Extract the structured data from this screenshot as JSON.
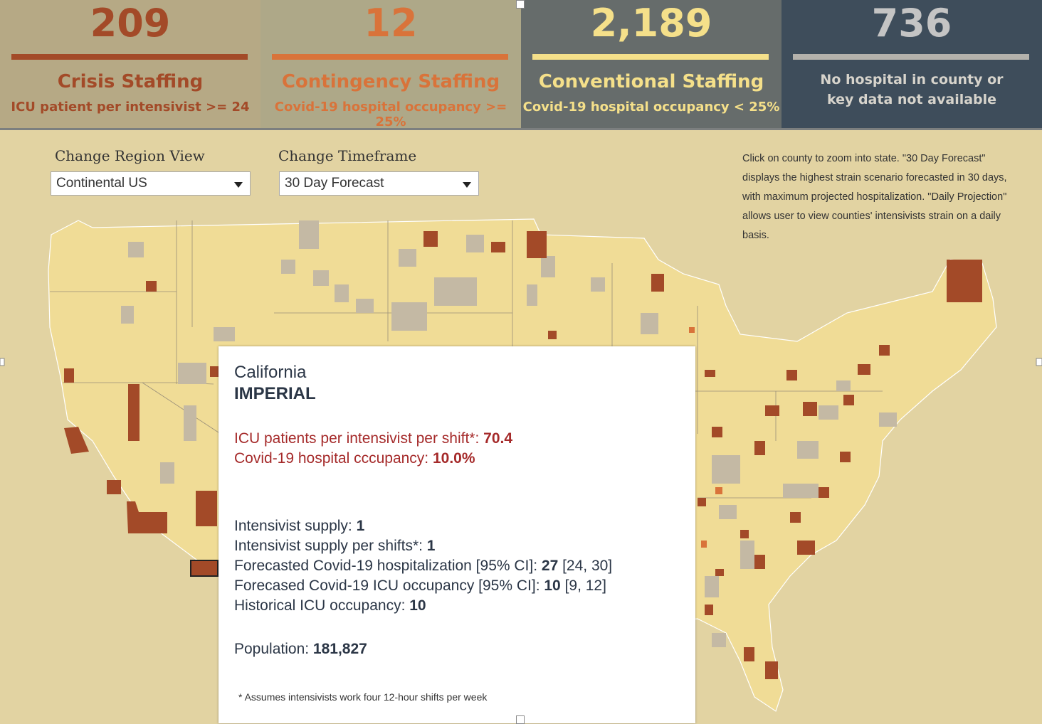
{
  "stats": [
    {
      "count": "209",
      "title": "Crisis Staffing",
      "sub": "ICU patient per intensivist >= 24"
    },
    {
      "count": "12",
      "title": "Contingency Staffing",
      "sub": "Covid-19 hospital occupancy >= 25%"
    },
    {
      "count": "2,189",
      "title": "Conventional Staffing",
      "sub": "Covid-19 hospital occupancy < 25%"
    },
    {
      "count": "736",
      "desc": "No hospital in county or key data not available"
    }
  ],
  "controls": {
    "region": {
      "label": "Change Region View",
      "value": "Continental US"
    },
    "timeframe": {
      "label": "Change Timeframe",
      "value": "30 Day Forecast"
    }
  },
  "info_text": "Click on county to zoom into state. \"30 Day Forecast\" displays the highest strain scenario forecasted in 30 days, with maximum projected hospitalization. \"Daily Projection\" allows user to view counties' intensivists strain on a daily basis.",
  "tooltip": {
    "state": "California",
    "county": "IMPERIAL",
    "icu_label": "ICU patients per intensivist per shift*: ",
    "icu_value": "70.4",
    "occ_label": "Covid-19 hospital cccupancy: ",
    "occ_value": "10.0%",
    "supply_label": "Intensivist supply: ",
    "supply_value": "1",
    "supply_shift_label": "Intensivist supply per shifts*: ",
    "supply_shift_value": "1",
    "hosp_label": "Forecasted Covid-19 hospitalization [95% CI]: ",
    "hosp_value": "27",
    "hosp_ci": " [24, 30]",
    "icu_occ_label": "Forecased Covid-19 ICU occupancy [95% CI]: ",
    "icu_occ_value": "10",
    "icu_occ_ci": " [9, 12]",
    "hist_label": "Historical ICU occupancy: ",
    "hist_value": "10",
    "pop_label": "Population: ",
    "pop_value": "181,827",
    "note": "* Assumes intensivists work four 12-hour shifts per week"
  },
  "colors": {
    "crisis": "#a34a28",
    "contingency": "#d9733a",
    "conventional": "#f0dc96",
    "no_data": "#c4b9a4",
    "background": "#e2d3a2"
  }
}
